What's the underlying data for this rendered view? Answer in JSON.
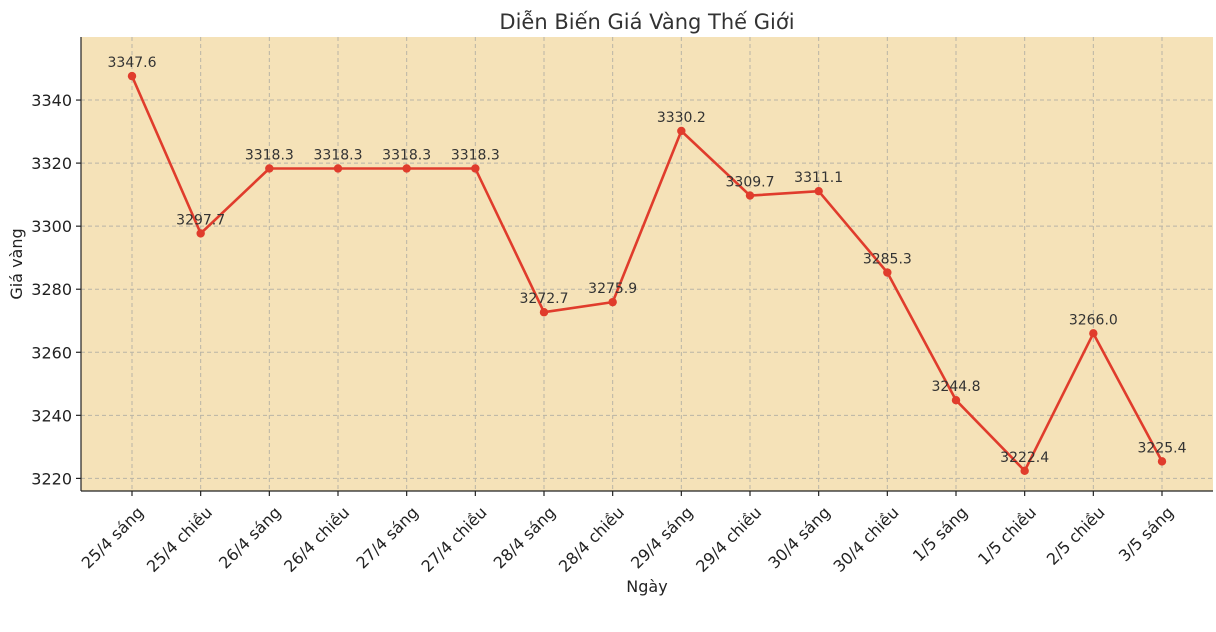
{
  "chart_data": {
    "type": "line",
    "title": "Diễn Biến Giá Vàng Thế Giới",
    "xlabel": "Ngày",
    "ylabel": "Giá vàng",
    "categories": [
      "25/4 sáng",
      "25/4 chiều",
      "26/4 sáng",
      "26/4 chiều",
      "27/4 sáng",
      "27/4 chiều",
      "28/4 sáng",
      "28/4 chiều",
      "29/4 sáng",
      "29/4 chiều",
      "30/4 sáng",
      "30/4 chiều",
      "1/5 sáng",
      "1/5 chiều",
      "2/5 chiều",
      "3/5 sáng"
    ],
    "values": [
      3347.6,
      3297.7,
      3318.3,
      3318.3,
      3318.3,
      3318.3,
      3272.7,
      3275.9,
      3330.2,
      3309.7,
      3311.1,
      3285.3,
      3244.8,
      3222.4,
      3266.0,
      3225.4
    ],
    "data_labels": [
      "3347.6",
      "3297.7",
      "3318.3",
      "3318.3",
      "3318.3",
      "3318.3",
      "3272.7",
      "3275.9",
      "3330.2",
      "3309.7",
      "3311.1",
      "3285.3",
      "3244.8",
      "3222.4",
      "3266.0",
      "3225.4"
    ],
    "yticks": [
      3220,
      3240,
      3260,
      3280,
      3300,
      3320,
      3340
    ],
    "ylim": [
      3216,
      3360
    ],
    "grid": true,
    "colors": {
      "line": "#e03c2c",
      "plot_background": "#f5e2b8",
      "axis": "#222222"
    }
  }
}
